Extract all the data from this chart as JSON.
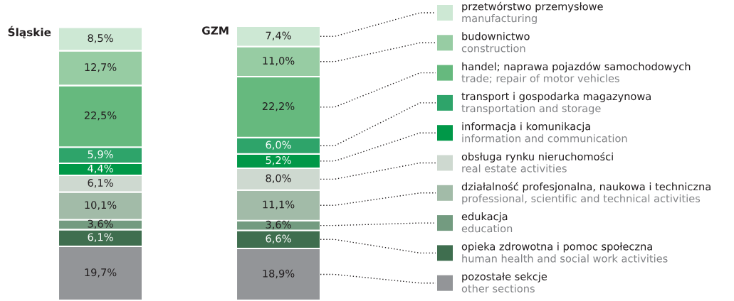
{
  "chart_data": {
    "type": "bar",
    "stacked": true,
    "categories": [
      "Śląskie",
      "GZM"
    ],
    "legend": "right",
    "series": [
      {
        "name": "pozostałe sekcje\nother sections",
        "color": "#939598",
        "values": [
          19.7,
          18.9
        ],
        "value_labels": [
          "19,7%",
          "18,9%"
        ]
      },
      {
        "name": "opieka zdrowotna i pomoc społeczna\nhuman health and social work activities",
        "color": "#3f6e4f",
        "values": [
          6.1,
          6.6
        ],
        "value_labels": [
          "6,1%",
          "6,6%"
        ]
      },
      {
        "name": "edukacja\neducation",
        "color": "#739b80",
        "values": [
          3.6,
          3.6
        ],
        "value_labels": [
          "3,6%",
          "3,6%"
        ]
      },
      {
        "name": "działalność profesjonalna, naukowa i techniczna\nprofessional, scientific and technical activities",
        "color": "#a2bba8",
        "values": [
          10.1,
          11.1
        ],
        "value_labels": [
          "10,1%",
          "11,1%"
        ]
      },
      {
        "name": "obsługa rynku nieruchomości\nreal estate activities",
        "color": "#ced9d0",
        "values": [
          6.1,
          8.0
        ],
        "value_labels": [
          "6,1%",
          "8,0%"
        ]
      },
      {
        "name": "informacja i komunikacja\ninformation and communication",
        "color": "#009848",
        "values": [
          4.4,
          5.2
        ],
        "value_labels": [
          "4,4%",
          "5,2%"
        ]
      },
      {
        "name": "transport i gospodarka magazynowa\ntransportation and storage",
        "color": "#2ea46a",
        "values": [
          5.9,
          6.0
        ],
        "value_labels": [
          "5,9%",
          "6,0%"
        ]
      },
      {
        "name": "handel; naprawa pojazdów samochodowych\ntrade; repair of motor vehicles",
        "color": "#66b97e",
        "values": [
          22.5,
          22.2
        ],
        "value_labels": [
          "22,5%",
          "22,2%"
        ]
      },
      {
        "name": "budownictwo\nconstruction",
        "color": "#97cca3",
        "values": [
          12.7,
          11.0
        ],
        "value_labels": [
          "12,7%",
          "11,0%"
        ]
      },
      {
        "name": "przetwórstwo przemysłowe\nmanufacturing",
        "color": "#cde8d4",
        "values": [
          8.5,
          7.4
        ],
        "value_labels": [
          "8,5%",
          "7,4%"
        ]
      }
    ]
  }
}
